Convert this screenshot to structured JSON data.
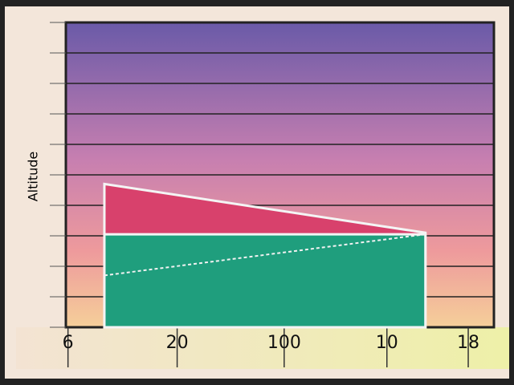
{
  "chart_data": {
    "type": "area",
    "ylabel": "Altitude",
    "x": [
      9,
      84
    ],
    "xlim": [
      0,
      100
    ],
    "xticks": [
      {
        "value": 0.5,
        "label": "6"
      },
      {
        "value": 26,
        "label": "20"
      },
      {
        "value": 51,
        "label": "100"
      },
      {
        "value": 75,
        "label": "10"
      },
      {
        "value": 94,
        "label": "18"
      }
    ],
    "ylim": [
      0,
      10
    ],
    "yticks": [
      0,
      1,
      2,
      3,
      4,
      5,
      6,
      7,
      8,
      9,
      10
    ],
    "grid": true,
    "series": [
      {
        "color": "#d8416c",
        "values": [
          4.7,
          3.1
        ]
      },
      {
        "color": "#1f9e7d",
        "values": [
          3.05,
          3.05
        ]
      },
      {
        "color": "#f2f2f2",
        "values": [
          1.7,
          3.05
        ],
        "style": "dashed"
      }
    ]
  }
}
